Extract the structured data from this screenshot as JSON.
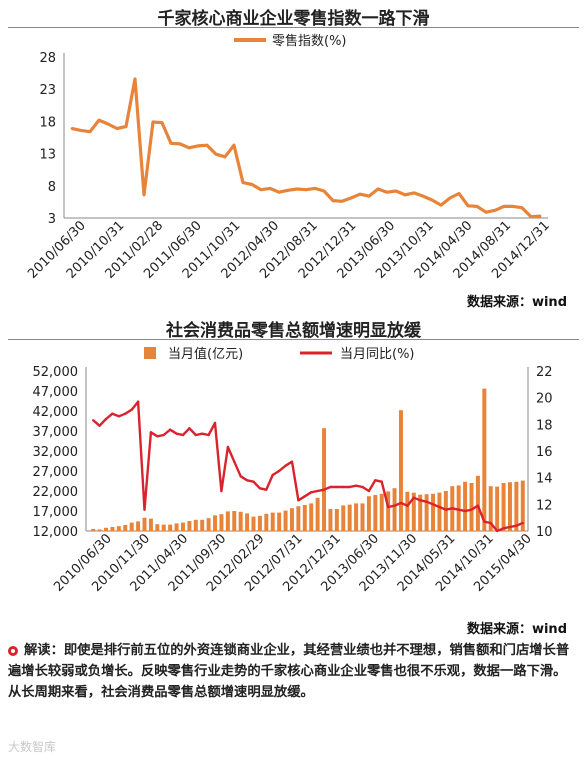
{
  "chart1": {
    "title": "千家核心商业企业零售指数一路下滑",
    "source": "数据来源：wind",
    "chart_data": {
      "type": "line",
      "title": "千家核心商业企业零售指数一路下滑",
      "xlabel": "",
      "ylabel": "",
      "ylim": [
        3,
        28
      ],
      "yticks": [
        3,
        8,
        13,
        18,
        23,
        28
      ],
      "grid": false,
      "legend": "top-center",
      "tick_labels": [
        "2010/06/30",
        "2010/10/31",
        "2011/02/28",
        "2011/06/30",
        "2011/10/31",
        "2012/04/30",
        "2012/08/31",
        "2012/12/31",
        "2013/06/30",
        "2013/10/31",
        "2014/04/30",
        "2014/08/31",
        "2014/12/31"
      ],
      "series": [
        {
          "name": "零售指数(%)",
          "color": "#e8843a",
          "values": [
            16.9,
            16.6,
            16.4,
            18.2,
            17.6,
            16.9,
            17.2,
            24.6,
            6.6,
            17.9,
            17.8,
            14.6,
            14.5,
            13.9,
            14.2,
            14.3,
            12.9,
            12.5,
            14.3,
            8.5,
            8.2,
            7.4,
            7.6,
            7.0,
            7.3,
            7.5,
            7.4,
            7.6,
            7.2,
            5.7,
            5.6,
            6.1,
            6.7,
            6.4,
            7.5,
            7.0,
            7.2,
            6.6,
            6.9,
            6.4,
            5.8,
            5.0,
            6.1,
            6.8,
            4.9,
            4.8,
            3.9,
            4.2,
            4.8,
            4.8,
            4.6,
            3.2,
            3.3
          ]
        }
      ]
    }
  },
  "chart2": {
    "title": "社会消费品零售总额增速明显放缓",
    "source": "数据来源：wind",
    "chart_data": {
      "type": "bar",
      "title": "社会消费品零售总额增速明显放缓",
      "xlabel": "",
      "ylabel": "",
      "ylim": [
        12000,
        52000
      ],
      "yticks": [
        12000,
        17000,
        22000,
        27000,
        32000,
        37000,
        42000,
        47000,
        52000
      ],
      "ytick_labels": [
        "12,000",
        "17,000",
        "22,000",
        "27,000",
        "32,000",
        "37,000",
        "42,000",
        "47,000",
        "52,000"
      ],
      "y2lim": [
        10,
        22
      ],
      "y2ticks": [
        10,
        12,
        14,
        16,
        18,
        20,
        22
      ],
      "grid": false,
      "legend": "top-center",
      "tick_labels": [
        "2010/06/30",
        "2010/11/30",
        "2011/04/30",
        "2011/09/30",
        "2012/02/29",
        "2012/07/31",
        "2012/12/31",
        "2013/06/30",
        "2013/11/30",
        "2014/05/31",
        "2014/10/31",
        "2015/04/30"
      ],
      "series": [
        {
          "name": "当月值(亿元)",
          "type": "bar",
          "axis": "left",
          "color": "#e8843a",
          "values": [
            12500,
            12400,
            12800,
            13000,
            13200,
            13500,
            14100,
            14400,
            15300,
            15100,
            13700,
            13600,
            13600,
            13900,
            14100,
            14500,
            14800,
            14800,
            15200,
            15900,
            16200,
            16900,
            17000,
            16800,
            16400,
            15600,
            15800,
            16300,
            16600,
            16600,
            17100,
            17700,
            18200,
            18500,
            18900,
            20300,
            37700,
            17500,
            17500,
            18400,
            18600,
            18900,
            18900,
            20700,
            21000,
            21300,
            21900,
            22700,
            42200,
            21800,
            21600,
            21100,
            21200,
            21300,
            21600,
            22000,
            23200,
            23400,
            24300,
            24000,
            25800,
            47600,
            23200,
            23100,
            24000,
            24200,
            24300,
            24600
          ]
        },
        {
          "name": "当月同比(%)",
          "type": "line",
          "axis": "right",
          "color": "#d9232d",
          "values": [
            18.3,
            17.9,
            18.4,
            18.8,
            18.6,
            18.8,
            19.1,
            19.7,
            11.6,
            17.4,
            17.1,
            17.2,
            17.6,
            17.3,
            17.2,
            17.7,
            17.2,
            17.3,
            17.2,
            18.1,
            13.0,
            16.3,
            15.2,
            14.1,
            13.8,
            13.7,
            13.2,
            13.1,
            14.2,
            14.5,
            14.9,
            15.2,
            12.3,
            12.6,
            12.9,
            13.0,
            13.1,
            13.3,
            13.3,
            13.3,
            13.3,
            13.4,
            13.3,
            13.0,
            13.8,
            13.7,
            11.8,
            11.9,
            12.1,
            11.9,
            12.5,
            12.3,
            12.2,
            12.0,
            11.8,
            11.6,
            11.7,
            11.6,
            11.5,
            11.6,
            11.9,
            10.7,
            10.6,
            10.0,
            10.2,
            10.3,
            10.4,
            10.6
          ]
        }
      ]
    }
  },
  "note": {
    "text": "解读：即使是排行前五位的外资连锁商业企业，其经营业绩也并不理想，销售额和门店增长普遍增长较弱或负增长。反映零售行业走势的千家核心商业企业零售也很不乐观，数据一路下滑。从长周期来看，社会消费品零售总额增速明显放缓。"
  },
  "watermark": "大数智库"
}
